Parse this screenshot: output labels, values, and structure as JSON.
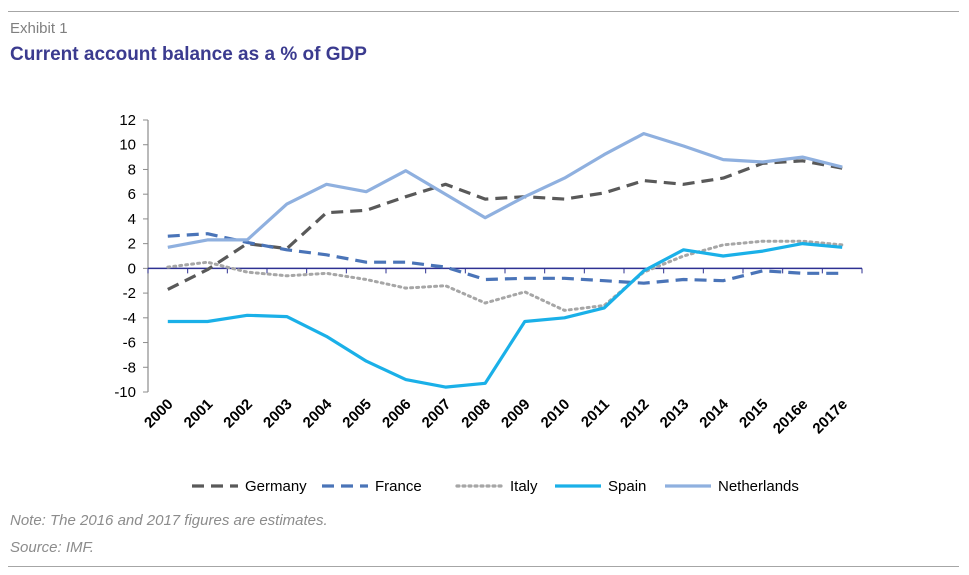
{
  "header": {
    "exhibit": "Exhibit 1",
    "title": "Current account balance as a % of GDP"
  },
  "footer": {
    "note": "Note: The 2016 and 2017 figures are estimates.",
    "source": "Source: IMF."
  },
  "chart_data": {
    "type": "line",
    "title": "Current account balance as a % of GDP",
    "xlabel": "",
    "ylabel": "",
    "categories": [
      "2000",
      "2001",
      "2002",
      "2003",
      "2004",
      "2005",
      "2006",
      "2007",
      "2008",
      "2009",
      "2010",
      "2011",
      "2012",
      "2013",
      "2014",
      "2015",
      "2016e",
      "2017e"
    ],
    "ylim": [
      -10,
      12
    ],
    "yticks": [
      -10,
      -8,
      -6,
      -4,
      -2,
      0,
      2,
      4,
      6,
      8,
      10,
      12
    ],
    "grid": false,
    "legend_position": "bottom",
    "series": [
      {
        "name": "Germany",
        "color": "#595959",
        "style": "dashed",
        "values": [
          -1.7,
          -0.1,
          2.0,
          1.6,
          4.5,
          4.7,
          5.8,
          6.8,
          5.6,
          5.8,
          5.6,
          6.1,
          7.1,
          6.8,
          7.3,
          8.5,
          8.7,
          8.1
        ]
      },
      {
        "name": "France",
        "color": "#4a74b8",
        "style": "dashed",
        "values": [
          2.6,
          2.8,
          2.1,
          1.5,
          1.1,
          0.5,
          0.5,
          0.1,
          -0.9,
          -0.8,
          -0.8,
          -1.0,
          -1.2,
          -0.9,
          -1.0,
          -0.2,
          -0.4,
          -0.4
        ]
      },
      {
        "name": "Italy",
        "color": "#a6a6a6",
        "style": "dotted",
        "values": [
          0.1,
          0.5,
          -0.3,
          -0.6,
          -0.4,
          -0.9,
          -1.6,
          -1.4,
          -2.8,
          -1.9,
          -3.4,
          -3.0,
          -0.3,
          1.0,
          1.9,
          2.2,
          2.2,
          1.9
        ]
      },
      {
        "name": "Spain",
        "color": "#1ab0e8",
        "style": "solid",
        "values": [
          -4.3,
          -4.3,
          -3.8,
          -3.9,
          -5.5,
          -7.5,
          -9.0,
          -9.6,
          -9.3,
          -4.3,
          -4.0,
          -3.2,
          -0.2,
          1.5,
          1.0,
          1.4,
          2.0,
          1.7
        ]
      },
      {
        "name": "Netherlands",
        "color": "#8fb0df",
        "style": "solid",
        "values": [
          1.7,
          2.3,
          2.3,
          5.2,
          6.8,
          6.2,
          7.9,
          6.0,
          4.1,
          5.8,
          7.3,
          9.2,
          10.9,
          9.9,
          8.8,
          8.6,
          9.0,
          8.2
        ]
      }
    ]
  }
}
